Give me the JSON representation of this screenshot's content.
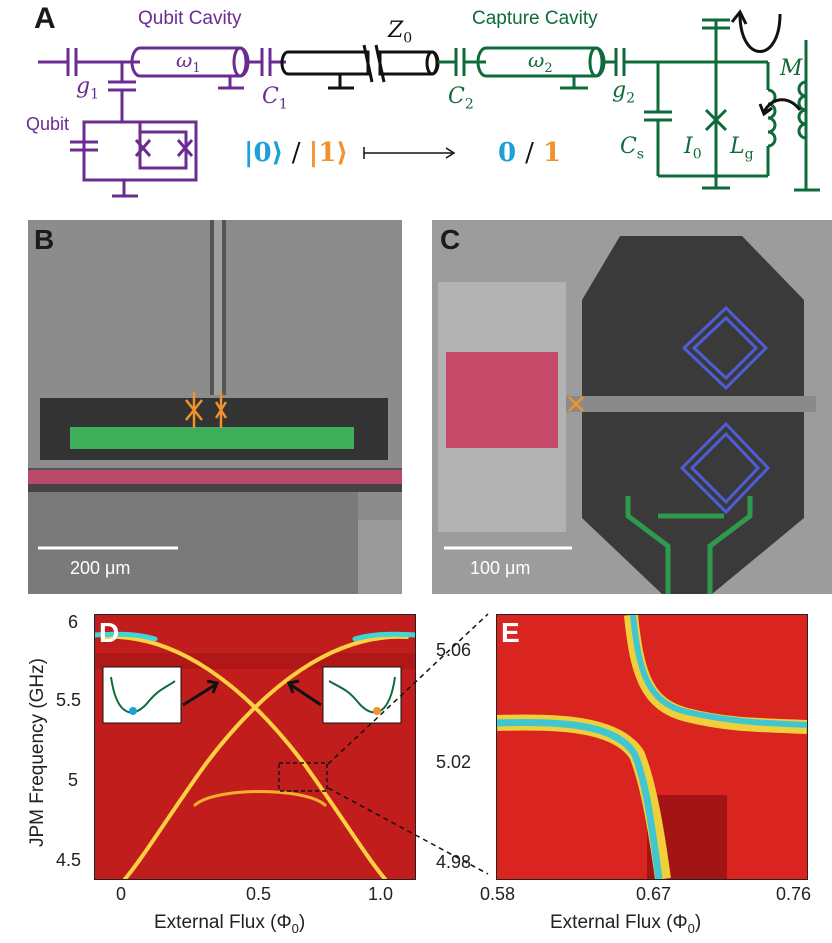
{
  "panels": {
    "a": "A",
    "b": "B",
    "c": "C",
    "d": "D",
    "e": "E"
  },
  "circuit": {
    "qubit_cavity": "Qubit Cavity",
    "omega1": "ω",
    "omega1_sub": "1",
    "z0": "Z",
    "z0_sub": "0",
    "capture_cavity": "Capture Cavity",
    "omega2": "ω",
    "omega2_sub": "2",
    "g1": "g",
    "g1_sub": "1",
    "c1": "C",
    "c1_sub": "1",
    "c2": "C",
    "c2_sub": "2",
    "g2": "g",
    "g2_sub": "2",
    "m": "M",
    "qubit": "Qubit",
    "state0": "|0⟩",
    "slash1": "/",
    "state1": "|1⟩",
    "out0": "0",
    "slash2": "/",
    "out1": "1",
    "cs": "C",
    "cs_sub": "s",
    "i0": "I",
    "i0_sub": "0",
    "lg": "L",
    "lg_sub": "g",
    "color_purple": "#6a2c91",
    "color_green": "#0f6b3a",
    "color_cyan": "#1ba1d8",
    "color_orange": "#f2922b"
  },
  "scalebars": {
    "b": "200 μm",
    "c": "100 μm"
  },
  "plot_d": {
    "ylabel": "JPM Frequency (GHz)",
    "xlabel": "External Flux (Φ",
    "xlabel_sub": "0",
    "xlabel_end": ")",
    "yticks": [
      "6",
      "5.5",
      "5",
      "4.5"
    ],
    "xticks": [
      "0",
      "0.5",
      "1.0"
    ]
  },
  "plot_e": {
    "xlabel": "External Flux (Φ",
    "xlabel_sub": "0",
    "xlabel_end": ")",
    "yticks": [
      "5.06",
      "5.02",
      "4.98"
    ],
    "xticks": [
      "0.58",
      "0.67",
      "0.76"
    ]
  }
}
